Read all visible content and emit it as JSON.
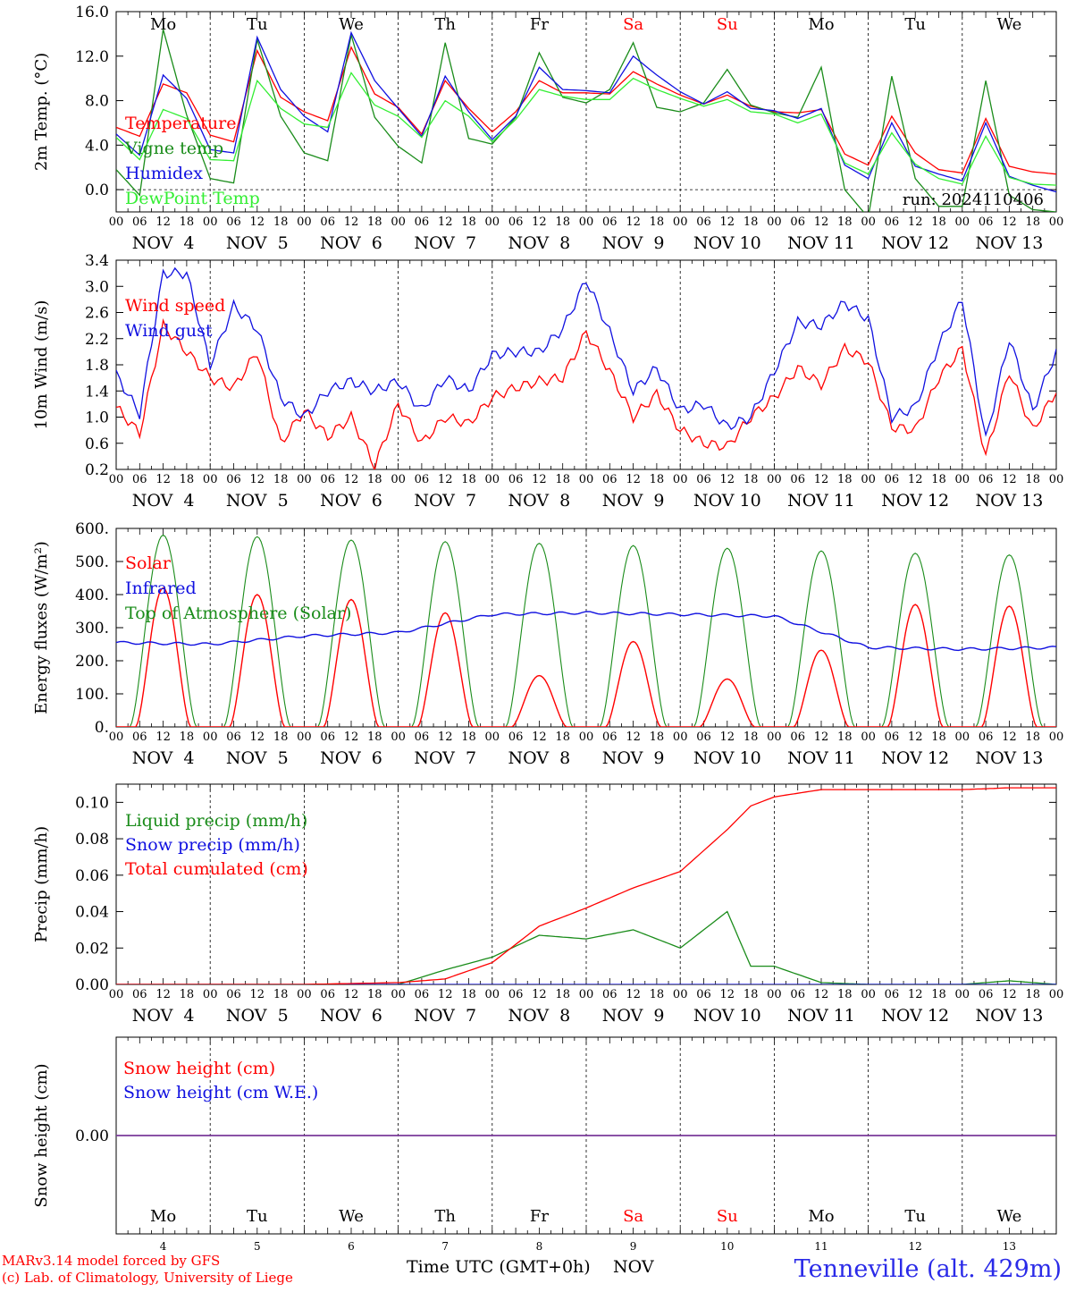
{
  "colors": {
    "red": "#ff0000",
    "green": "#1a8c1a",
    "blue": "#1010e0",
    "lightgreen": "#33ee33",
    "purple": "#7a3a9a",
    "black": "#000000",
    "station": "#2a2ae8"
  },
  "days": [
    "Mo",
    "Tu",
    "We",
    "Th",
    "Fr",
    "Sa",
    "Su",
    "Mo",
    "Tu",
    "We"
  ],
  "weekend_days": [
    5,
    6
  ],
  "date_labels": [
    "NOV  4",
    "NOV  5",
    "NOV  6",
    "NOV  7",
    "NOV  8",
    "NOV  9",
    "NOV 10",
    "NOV 11",
    "NOV 12",
    "NOV 13"
  ],
  "hour_ticks": [
    "00",
    "06",
    "12",
    "18"
  ],
  "last_tick": "00",
  "bottom_day_numbers": [
    "4",
    "5",
    "6",
    "7",
    "8",
    "9",
    "10",
    "11",
    "12",
    "13"
  ],
  "x_axis_title": "Time UTC (GMT+0h)",
  "x_axis_month": "NOV",
  "credit_line1": "MARv3.14 model forced by GFS",
  "credit_line2": "(c) Lab. of Climatology, University of Liege",
  "station": "Tenneville (alt. 429m)",
  "chart_data": [
    {
      "type": "line",
      "ylabel": "2m Temp. (°C)",
      "ylim": [
        -2,
        16
      ],
      "yticks": [
        "0.0",
        "4.0",
        "8.0",
        "12.0",
        "16.0"
      ],
      "ytick_values": [
        0,
        4,
        8,
        12,
        16
      ],
      "zero_line": true,
      "run_label": "run: 2024110406",
      "x_hours": [
        0,
        6,
        12,
        18,
        24,
        30,
        36,
        42,
        48,
        54,
        60,
        66,
        72,
        78,
        84,
        90,
        96,
        102,
        108,
        114,
        120,
        126,
        132,
        138,
        144,
        150,
        156,
        162,
        168,
        174,
        180,
        186,
        192,
        198,
        204,
        210,
        216,
        222,
        228,
        234,
        240
      ],
      "series": [
        {
          "name": "Temperature",
          "color": "red",
          "values": [
            5.6,
            4.8,
            9.5,
            8.7,
            4.9,
            4.3,
            12.5,
            8.3,
            7.0,
            6.2,
            12.8,
            8.6,
            7.4,
            5.0,
            9.8,
            7.3,
            5.2,
            7.0,
            9.8,
            8.7,
            8.7,
            8.6,
            10.6,
            9.5,
            8.5,
            7.7,
            8.5,
            7.5,
            7.0,
            6.9,
            7.2,
            3.2,
            2.2,
            6.6,
            3.3,
            1.8,
            1.5,
            6.4,
            2.1,
            1.6,
            1.4
          ]
        },
        {
          "name": "Vigne temp",
          "color": "green",
          "values": [
            1.8,
            -0.5,
            14.4,
            6.7,
            1.0,
            0.6,
            13.5,
            6.6,
            3.3,
            2.6,
            13.9,
            6.5,
            3.9,
            2.4,
            13.2,
            4.6,
            4.1,
            6.5,
            12.3,
            8.3,
            7.8,
            9.0,
            13.2,
            7.4,
            7.0,
            7.8,
            10.8,
            7.6,
            6.9,
            6.5,
            11.0,
            0.0,
            -2.5,
            10.2,
            1.0,
            -1.5,
            -1.5,
            9.8,
            -0.5,
            -1.8,
            -2.0
          ]
        },
        {
          "name": "Humidex",
          "color": "blue",
          "values": [
            5.0,
            3.1,
            10.3,
            8.2,
            3.6,
            3.3,
            13.7,
            9.0,
            6.6,
            5.2,
            14.1,
            9.8,
            7.3,
            4.8,
            10.2,
            7.0,
            4.5,
            6.6,
            11.0,
            9.0,
            8.9,
            8.7,
            12.0,
            10.3,
            8.8,
            7.7,
            8.8,
            7.3,
            7.1,
            6.4,
            7.3,
            2.2,
            1.0,
            6.0,
            2.1,
            1.4,
            0.8,
            6.0,
            1.2,
            0.4,
            -0.2
          ]
        },
        {
          "name": "DewPoint Temp",
          "color": "lightgreen",
          "values": [
            4.7,
            2.7,
            7.2,
            6.4,
            2.7,
            2.6,
            9.8,
            7.3,
            5.9,
            5.6,
            10.5,
            7.6,
            6.6,
            4.7,
            8.0,
            6.6,
            4.3,
            6.3,
            9.0,
            8.4,
            8.1,
            8.1,
            10.0,
            9.0,
            8.2,
            7.5,
            8.1,
            7.0,
            6.8,
            6.0,
            6.8,
            2.4,
            1.4,
            5.1,
            2.3,
            1.0,
            0.5,
            4.8,
            1.1,
            0.5,
            0.4
          ]
        }
      ]
    },
    {
      "type": "line",
      "ylabel": "10m Wind (m/s)",
      "ylim": [
        0.2,
        3.4
      ],
      "yticks": [
        "0.2",
        "0.6",
        "1.0",
        "1.4",
        "1.8",
        "2.2",
        "2.6",
        "3.0",
        "3.4"
      ],
      "ytick_values": [
        0.2,
        0.6,
        1.0,
        1.4,
        1.8,
        2.2,
        2.6,
        3.0,
        3.4
      ],
      "x_hours": [
        0,
        6,
        12,
        18,
        24,
        30,
        36,
        42,
        48,
        54,
        60,
        66,
        72,
        78,
        84,
        90,
        96,
        102,
        108,
        114,
        120,
        126,
        132,
        138,
        144,
        150,
        156,
        162,
        168,
        174,
        180,
        186,
        192,
        198,
        204,
        210,
        216,
        222,
        228,
        234,
        240
      ],
      "series": [
        {
          "name": "Wind speed",
          "color": "red",
          "values": [
            1.15,
            0.75,
            2.4,
            2.0,
            1.6,
            1.45,
            2.0,
            0.6,
            1.1,
            0.7,
            1.0,
            0.25,
            1.2,
            0.6,
            1.0,
            0.9,
            1.3,
            1.45,
            1.55,
            1.6,
            2.3,
            1.7,
            1.0,
            1.35,
            0.8,
            0.6,
            0.55,
            1.0,
            1.3,
            1.75,
            1.5,
            2.05,
            1.85,
            0.85,
            0.8,
            1.6,
            2.05,
            0.4,
            1.7,
            0.8,
            1.4
          ]
        },
        {
          "name": "Wind gust",
          "color": "blue",
          "values": [
            1.65,
            1.05,
            3.2,
            3.2,
            1.8,
            2.7,
            2.35,
            1.3,
            1.0,
            1.4,
            1.55,
            1.4,
            1.55,
            1.1,
            1.6,
            1.4,
            1.95,
            2.0,
            2.0,
            2.35,
            3.1,
            2.3,
            1.4,
            1.75,
            1.1,
            1.2,
            0.85,
            1.0,
            1.7,
            2.45,
            2.4,
            2.75,
            2.5,
            1.0,
            1.15,
            2.1,
            2.8,
            0.65,
            2.2,
            1.1,
            2.0
          ]
        }
      ]
    },
    {
      "type": "line",
      "ylabel": "Energy fluxes (W/m²)",
      "ylim": [
        0,
        600
      ],
      "yticks": [
        "0.",
        "100.",
        "200.",
        "300.",
        "400.",
        "500.",
        "600."
      ],
      "ytick_values": [
        0,
        100,
        200,
        300,
        400,
        500,
        600
      ],
      "daily_peak_hour": 12,
      "toa_daily_peaks": [
        580,
        575,
        565,
        560,
        555,
        548,
        540,
        532,
        525,
        520
      ],
      "solar_daily_peaks": [
        420,
        400,
        385,
        345,
        155,
        258,
        145,
        232,
        370,
        365
      ],
      "x_hours": [
        0,
        24,
        48,
        72,
        96,
        120,
        144,
        168,
        192,
        216,
        240
      ],
      "series": [
        {
          "name": "Solar",
          "color": "red"
        },
        {
          "name": "Infrared",
          "color": "blue",
          "values": [
            255,
            250,
            275,
            285,
            340,
            345,
            340,
            335,
            240,
            235,
            240
          ]
        },
        {
          "name": "Top of Atmosphere (Solar)",
          "color": "green"
        }
      ]
    },
    {
      "type": "line",
      "ylabel": "Precip (mm/h)",
      "ylim": [
        0,
        0.11
      ],
      "yticks": [
        "0.00",
        "0.02",
        "0.04",
        "0.06",
        "0.08",
        "0.10"
      ],
      "ytick_values": [
        0,
        0.02,
        0.04,
        0.06,
        0.08,
        0.1
      ],
      "x_hours": [
        0,
        24,
        48,
        72,
        84,
        96,
        108,
        120,
        132,
        144,
        156,
        162,
        168,
        180,
        192,
        216,
        228,
        240
      ],
      "series": [
        {
          "name": "Liquid precip (mm/h)",
          "color": "green",
          "values": [
            0,
            0,
            0,
            0,
            0.008,
            0.015,
            0.027,
            0.025,
            0.03,
            0.02,
            0.04,
            0.01,
            0.01,
            0.001,
            0,
            0,
            0.002,
            0
          ]
        },
        {
          "name": "Snow precip (mm/h)",
          "color": "blue",
          "values": [
            0,
            0,
            0,
            0,
            0,
            0,
            0,
            0,
            0,
            0,
            0,
            0,
            0,
            0,
            0,
            0,
            0,
            0
          ]
        },
        {
          "name": "Total cumulated (cm)",
          "color": "red",
          "values": [
            0,
            0,
            0,
            0.001,
            0.003,
            0.012,
            0.032,
            0.042,
            0.053,
            0.062,
            0.085,
            0.098,
            0.103,
            0.107,
            0.107,
            0.107,
            0.108,
            0.108
          ]
        }
      ]
    },
    {
      "type": "line",
      "ylabel": "Snow height (cm)",
      "ylim": [
        -1,
        1
      ],
      "yticks": [
        "0.00"
      ],
      "ytick_values": [
        0
      ],
      "x_hours": [
        0,
        240
      ],
      "series": [
        {
          "name": "Snow height (cm)",
          "color": "red",
          "values": [
            0,
            0
          ]
        },
        {
          "name": "Snow height (cm W.E.)",
          "color": "blue",
          "values": [
            0,
            0
          ]
        }
      ]
    }
  ]
}
